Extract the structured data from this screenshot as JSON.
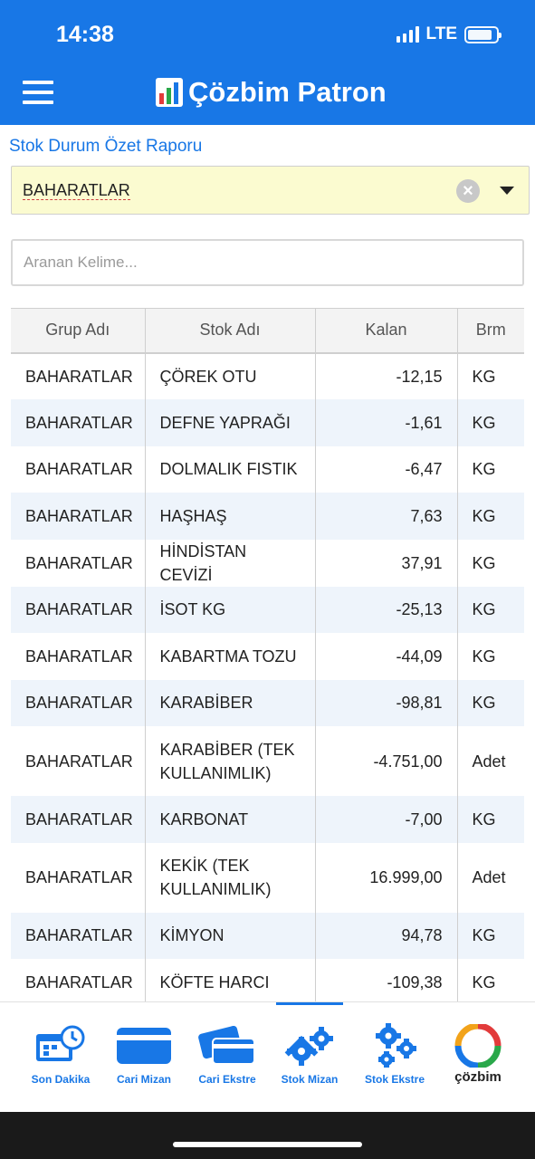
{
  "status_bar": {
    "time": "14:38",
    "network": "LTE"
  },
  "app": {
    "title": "Çözbim Patron"
  },
  "report": {
    "title": "Stok Durum Özet Raporu",
    "selected_group": "BAHARATLAR",
    "search_placeholder": "Aranan Kelime..."
  },
  "table": {
    "columns": [
      "Grup Adı",
      "Stok Adı",
      "Kalan",
      "Brm"
    ],
    "rows": [
      {
        "group": "BAHARATLAR",
        "name": "ÇÖREK OTU",
        "remaining": "-12,15",
        "unit": "KG"
      },
      {
        "group": "BAHARATLAR",
        "name": "DEFNE YAPRAĞI",
        "remaining": "-1,61",
        "unit": "KG"
      },
      {
        "group": "BAHARATLAR",
        "name": "DOLMALIK FISTIK",
        "remaining": "-6,47",
        "unit": "KG"
      },
      {
        "group": "BAHARATLAR",
        "name": "HAŞHAŞ",
        "remaining": "7,63",
        "unit": "KG"
      },
      {
        "group": "BAHARATLAR",
        "name": "HİNDİSTAN CEVİZİ",
        "remaining": "37,91",
        "unit": "KG"
      },
      {
        "group": "BAHARATLAR",
        "name": "İSOT KG",
        "remaining": "-25,13",
        "unit": "KG"
      },
      {
        "group": "BAHARATLAR",
        "name": "KABARTMA TOZU",
        "remaining": "-44,09",
        "unit": "KG"
      },
      {
        "group": "BAHARATLAR",
        "name": "KARABİBER",
        "remaining": "-98,81",
        "unit": "KG"
      },
      {
        "group": "BAHARATLAR",
        "name": "KARABİBER (TEK KULLANIMLIK)",
        "remaining": "-4.751,00",
        "unit": "Adet"
      },
      {
        "group": "BAHARATLAR",
        "name": "KARBONAT",
        "remaining": "-7,00",
        "unit": "KG"
      },
      {
        "group": "BAHARATLAR",
        "name": "KEKİK (TEK KULLANIMLIK)",
        "remaining": "16.999,00",
        "unit": "Adet"
      },
      {
        "group": "BAHARATLAR",
        "name": "KİMYON",
        "remaining": "94,78",
        "unit": "KG"
      },
      {
        "group": "BAHARATLAR",
        "name": "KÖFTE HARCI",
        "remaining": "-109,38",
        "unit": "KG"
      }
    ]
  },
  "tabbar": {
    "active": "Stok Mizan",
    "items": [
      {
        "label": "Son Dakika",
        "icon": "calendar-clock-icon"
      },
      {
        "label": "Cari Mizan",
        "icon": "card-icon"
      },
      {
        "label": "Cari Ekstre",
        "icon": "cards-icon"
      },
      {
        "label": "Stok Mizan",
        "icon": "gears-icon"
      },
      {
        "label": "Stok Ekstre",
        "icon": "gears-stack-icon"
      }
    ],
    "brand": "çözbim"
  },
  "colors": {
    "primary": "#1877e6",
    "select_bg": "#fbfbd0",
    "row_alt": "#eef4fb"
  }
}
